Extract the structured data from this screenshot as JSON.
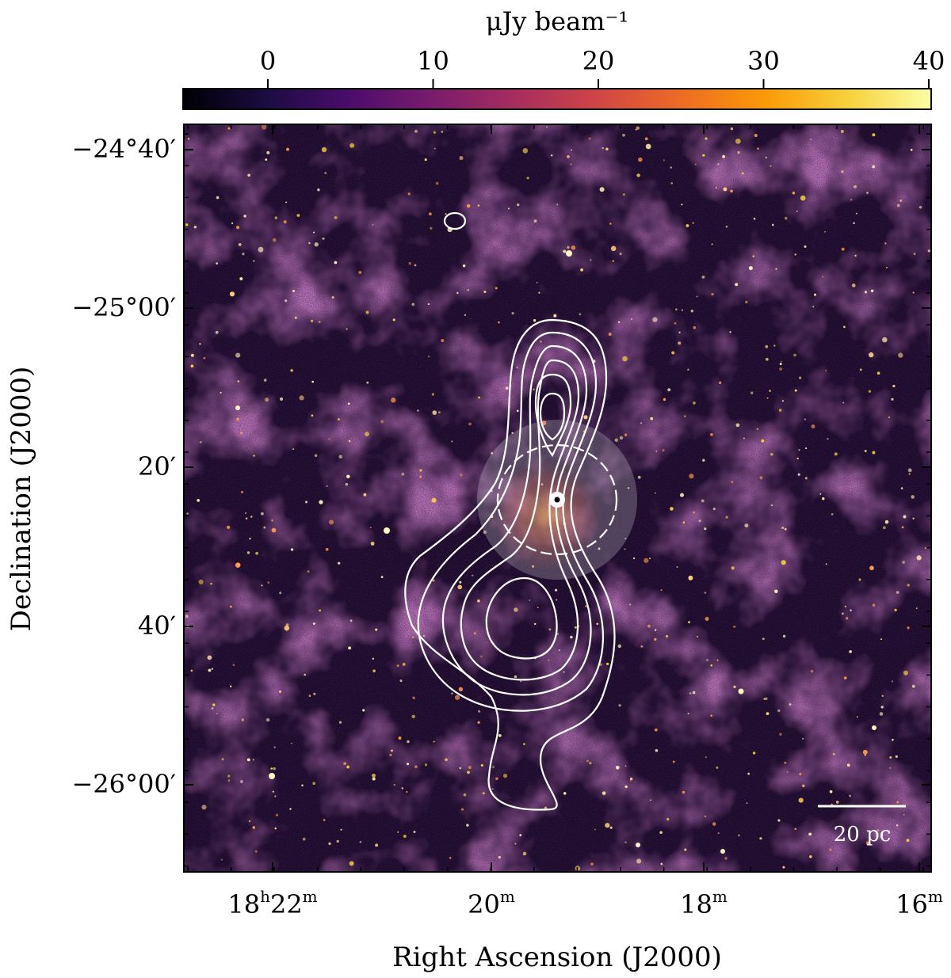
{
  "colorbar": {
    "label": "μJy beam⁻¹",
    "ticks": [
      "0",
      "10",
      "20",
      "30",
      "40"
    ],
    "colormap": [
      "#000004",
      "#1b0c41",
      "#4a0c6b",
      "#781c6d",
      "#a52c60",
      "#cf4446",
      "#ed6925",
      "#fb9b06",
      "#f7d13d",
      "#fcffa4"
    ]
  },
  "axes": {
    "xlabel": "Right Ascension (J2000)",
    "ylabel": "Declination (J2000)",
    "xticks": [
      {
        "main": "18",
        "sup1": "h",
        "mid": "22",
        "sup2": "m"
      },
      {
        "main": "20",
        "sup1": "m"
      },
      {
        "main": "18",
        "sup1": "m"
      },
      {
        "main": "16",
        "sup1": "m"
      }
    ],
    "yticks": [
      "−24°40′",
      "−25°00′",
      "20′",
      "40′",
      "−26°00′"
    ]
  },
  "scalebar": {
    "label": "20 pc"
  },
  "colors": {
    "background": "#3a0f4a",
    "contour": "#ffffff",
    "frame": "#000000"
  }
}
